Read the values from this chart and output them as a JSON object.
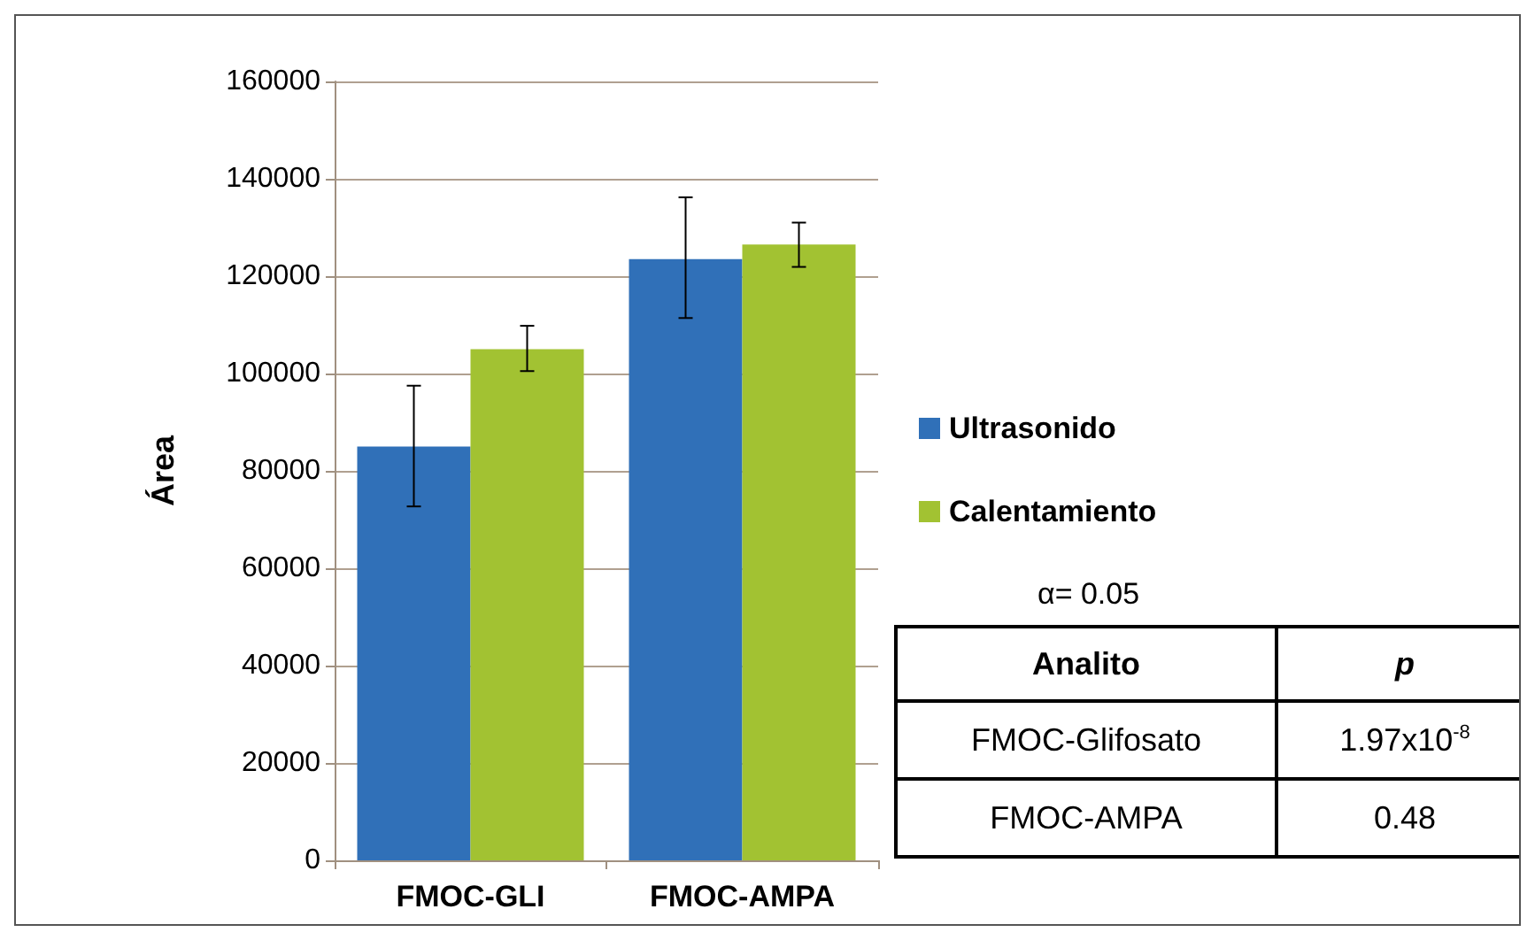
{
  "chart_data": {
    "type": "bar",
    "ylabel": "Área",
    "categories": [
      "FMOC-GLI",
      "FMOC-AMPA"
    ],
    "series": [
      {
        "name": "Ultrasonido",
        "color": "#3070b8",
        "values": [
          85000,
          123500
        ],
        "errors": [
          [
            72700,
            97500
          ],
          [
            111400,
            136200
          ]
        ]
      },
      {
        "name": "Calentamiento",
        "color": "#a2c232",
        "values": [
          105000,
          126500
        ],
        "errors": [
          [
            100500,
            109800
          ],
          [
            121900,
            131000
          ]
        ]
      }
    ],
    "ylim": [
      0,
      160000
    ],
    "yticks": [
      0,
      20000,
      40000,
      60000,
      80000,
      100000,
      120000,
      140000,
      160000
    ],
    "grid": "y",
    "legend": "right",
    "annotations": [
      "α= 0.05",
      "Analito",
      "p",
      "FMOC-Glifosato",
      "1.97x10$^{-8}$",
      "FMOC-AMPA",
      "0.48"
    ]
  }
}
